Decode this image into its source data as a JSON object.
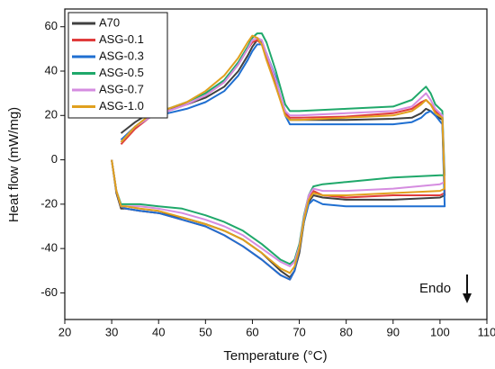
{
  "chart_data": {
    "type": "line",
    "xlabel": "Temperature (°C)",
    "ylabel": "Heat flow (mW/mg)",
    "annotation": "Endo",
    "xlim": [
      20,
      110
    ],
    "xticks": [
      20,
      30,
      40,
      50,
      60,
      70,
      80,
      90,
      100,
      110
    ],
    "ylim": [
      -72,
      68
    ],
    "yticks": [
      -60,
      -40,
      -20,
      0,
      20,
      40,
      60
    ],
    "legend": "upper left",
    "series": [
      {
        "name": "A70",
        "color": "#404040",
        "x": [
          32,
          35,
          38,
          42,
          46,
          50,
          54,
          57,
          59,
          60,
          61,
          62,
          63,
          65,
          67,
          68,
          70,
          80,
          90,
          94,
          96,
          97,
          98,
          99,
          100.5,
          101,
          100,
          90,
          80,
          75,
          73,
          72,
          71,
          70,
          69,
          68,
          66,
          62,
          58,
          54,
          50,
          45,
          40,
          36,
          33,
          32,
          31,
          30
        ],
        "values": [
          12,
          17,
          21,
          23,
          25,
          28,
          33,
          40,
          47,
          51,
          54,
          53,
          48,
          35,
          22,
          18,
          18,
          18,
          18.5,
          19,
          21,
          23,
          22,
          20,
          18,
          -16,
          -17,
          -18,
          -18,
          -17,
          -16,
          -19,
          -28,
          -42,
          -50,
          -53,
          -50,
          -42,
          -36,
          -32,
          -29,
          -26,
          -24,
          -23,
          -22,
          -22,
          -15,
          0
        ]
      },
      {
        "name": "ASG-0.1",
        "color": "#e03c3c",
        "x": [
          32,
          35,
          38,
          42,
          46,
          50,
          54,
          57,
          59,
          60,
          61,
          62,
          63,
          65,
          67,
          68,
          70,
          80,
          90,
          94,
          96,
          97,
          98,
          99,
          100.5,
          101,
          100,
          90,
          80,
          75,
          73,
          72,
          71,
          70,
          69,
          68,
          66,
          62,
          58,
          54,
          50,
          45,
          40,
          36,
          33,
          32,
          31,
          30
        ],
        "values": [
          7,
          14,
          19,
          22,
          25,
          29,
          35,
          43,
          50,
          53,
          54,
          52,
          46,
          33,
          21,
          19,
          19,
          19.5,
          21,
          23,
          26,
          27,
          25,
          22,
          19,
          -15,
          -16,
          -16,
          -17,
          -16,
          -14,
          -18,
          -27,
          -40,
          -50,
          -54,
          -52,
          -45,
          -39,
          -34,
          -30,
          -27,
          -24,
          -23,
          -22,
          -21,
          -14,
          0
        ]
      },
      {
        "name": "ASG-0.3",
        "color": "#1f6fd1",
        "x": [
          32,
          35,
          38,
          42,
          46,
          50,
          54,
          57,
          59,
          60,
          61,
          62,
          63,
          65,
          67,
          68,
          70,
          80,
          90,
          94,
          96,
          97,
          98,
          99,
          100.5,
          101,
          100,
          90,
          80,
          75,
          73,
          72,
          71,
          70,
          69,
          68,
          66,
          62,
          58,
          54,
          50,
          45,
          40,
          36,
          33,
          32,
          31,
          30
        ],
        "values": [
          9,
          15,
          19,
          21,
          23,
          26,
          31,
          38,
          45,
          49,
          52,
          52,
          48,
          37,
          20,
          16,
          16,
          16,
          16,
          17,
          19,
          21,
          22,
          20,
          16,
          -21,
          -21,
          -21,
          -21,
          -20,
          -18,
          -20,
          -28,
          -40,
          -50,
          -54,
          -52,
          -45,
          -39,
          -34,
          -30,
          -27,
          -24,
          -23,
          -22,
          -21,
          -14,
          0
        ]
      },
      {
        "name": "ASG-0.5",
        "color": "#1fa86a",
        "x": [
          32,
          35,
          38,
          42,
          46,
          50,
          54,
          57,
          59,
          60,
          61,
          62,
          63,
          65,
          67,
          68,
          70,
          80,
          90,
          94,
          96,
          97,
          98,
          99,
          100.5,
          101,
          100,
          90,
          80,
          75,
          73,
          72,
          71,
          70,
          69,
          68,
          66,
          62,
          58,
          54,
          50,
          45,
          40,
          36,
          33,
          32,
          31,
          30
        ],
        "values": [
          8,
          15,
          20,
          23,
          26,
          30,
          36,
          44,
          51,
          55,
          57,
          57,
          53,
          40,
          25,
          22,
          22,
          23,
          24,
          27,
          31,
          33,
          30,
          25,
          22,
          -7,
          -7,
          -8,
          -10,
          -11,
          -12,
          -16,
          -25,
          -38,
          -45,
          -47,
          -45,
          -38,
          -32,
          -28,
          -25,
          -22,
          -21,
          -20,
          -20,
          -20,
          -14,
          0
        ]
      },
      {
        "name": "ASG-0.7",
        "color": "#d58ce0",
        "x": [
          32,
          35,
          38,
          42,
          46,
          50,
          54,
          57,
          59,
          60,
          61,
          62,
          63,
          65,
          67,
          68,
          70,
          80,
          90,
          94,
          96,
          97,
          98,
          99,
          100.5,
          101,
          100,
          90,
          80,
          75,
          73,
          72,
          71,
          70,
          69,
          68,
          66,
          62,
          58,
          54,
          50,
          45,
          40,
          36,
          33,
          32,
          31,
          30
        ],
        "values": [
          8,
          15,
          19,
          22,
          25,
          29,
          35,
          43,
          50,
          54,
          55,
          54,
          48,
          36,
          22,
          20,
          20,
          21,
          22,
          24,
          28,
          30,
          27,
          23,
          20,
          -10,
          -11,
          -13,
          -14,
          -14,
          -13,
          -16,
          -26,
          -39,
          -46,
          -48,
          -46,
          -40,
          -34,
          -30,
          -27,
          -24,
          -22,
          -21,
          -21,
          -21,
          -14,
          0
        ]
      },
      {
        "name": "ASG-1.0",
        "color": "#e0a01e",
        "x": [
          32,
          35,
          38,
          42,
          46,
          50,
          54,
          57,
          59,
          60,
          61,
          62,
          63,
          65,
          67,
          68,
          70,
          80,
          90,
          94,
          96,
          97,
          98,
          99,
          100.5,
          101,
          100,
          90,
          80,
          75,
          73,
          72,
          71,
          70,
          69,
          68,
          66,
          62,
          58,
          54,
          50,
          45,
          40,
          36,
          33,
          32,
          31,
          30
        ],
        "values": [
          8,
          15,
          20,
          23,
          26,
          31,
          38,
          46,
          53,
          56,
          55,
          52,
          45,
          33,
          20,
          18,
          18,
          19,
          20,
          22,
          25,
          27,
          25,
          21,
          19,
          -13,
          -14,
          -15,
          -16,
          -16,
          -15,
          -18,
          -27,
          -40,
          -48,
          -51,
          -49,
          -42,
          -36,
          -32,
          -29,
          -26,
          -23,
          -22,
          -21,
          -21,
          -14,
          0
        ]
      }
    ]
  }
}
